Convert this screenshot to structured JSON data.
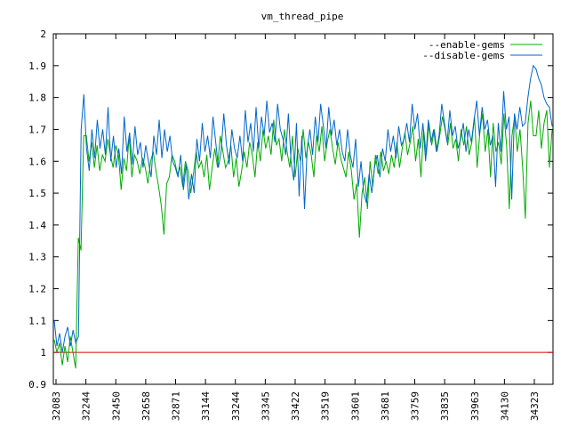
{
  "chart_data": {
    "type": "line",
    "title": "vm_thread_pipe",
    "xlabel": "",
    "ylabel": "",
    "ylim": [
      0.9,
      2.0
    ],
    "yticks": [
      "0.9",
      "1",
      "1.1",
      "1.2",
      "1.3",
      "1.4",
      "1.5",
      "1.6",
      "1.7",
      "1.8",
      "1.9",
      "2"
    ],
    "xtick_labels": [
      "32083",
      "32244",
      "32450",
      "32658",
      "32871",
      "33144",
      "33244",
      "33345",
      "33422",
      "33519",
      "33601",
      "33681",
      "33759",
      "33835",
      "33963",
      "34130",
      "34323"
    ],
    "grid": false,
    "legend_position": "top-right",
    "reference_line": {
      "value": 1.0,
      "color": "#e00000"
    },
    "series": [
      {
        "name": "--enable-gems",
        "color": "#00aa00",
        "values": [
          1.04,
          1.0,
          1.03,
          0.96,
          1.02,
          0.97,
          1.05,
          1.0,
          0.95,
          1.36,
          1.32,
          1.68,
          1.68,
          1.6,
          1.66,
          1.58,
          1.65,
          1.57,
          1.62,
          1.6,
          1.67,
          1.62,
          1.58,
          1.65,
          1.62,
          1.51,
          1.61,
          1.57,
          1.68,
          1.55,
          1.62,
          1.6,
          1.56,
          1.61,
          1.58,
          1.53,
          1.6,
          1.63,
          1.57,
          1.52,
          1.46,
          1.37,
          1.53,
          1.55,
          1.62,
          1.6,
          1.56,
          1.58,
          1.52,
          1.6,
          1.57,
          1.5,
          1.56,
          1.63,
          1.58,
          1.6,
          1.55,
          1.62,
          1.51,
          1.58,
          1.64,
          1.58,
          1.68,
          1.63,
          1.58,
          1.6,
          1.65,
          1.55,
          1.61,
          1.52,
          1.57,
          1.63,
          1.58,
          1.66,
          1.62,
          1.55,
          1.66,
          1.6,
          1.7,
          1.64,
          1.68,
          1.62,
          1.73,
          1.65,
          1.67,
          1.6,
          1.7,
          1.63,
          1.58,
          1.68,
          1.55,
          1.64,
          1.6,
          1.7,
          1.61,
          1.66,
          1.62,
          1.55,
          1.68,
          1.63,
          1.71,
          1.6,
          1.66,
          1.7,
          1.64,
          1.59,
          1.66,
          1.61,
          1.58,
          1.55,
          1.63,
          1.57,
          1.48,
          1.53,
          1.36,
          1.5,
          1.55,
          1.45,
          1.6,
          1.52,
          1.62,
          1.56,
          1.63,
          1.57,
          1.6,
          1.56,
          1.62,
          1.58,
          1.66,
          1.58,
          1.64,
          1.69,
          1.62,
          1.66,
          1.71,
          1.6,
          1.67,
          1.55,
          1.7,
          1.62,
          1.72,
          1.65,
          1.7,
          1.63,
          1.68,
          1.74,
          1.7,
          1.65,
          1.72,
          1.64,
          1.67,
          1.6,
          1.7,
          1.65,
          1.71,
          1.62,
          1.66,
          1.74,
          1.58,
          1.69,
          1.75,
          1.63,
          1.7,
          1.55,
          1.72,
          1.63,
          1.66,
          1.59,
          1.75,
          1.65,
          1.45,
          1.68,
          1.74,
          1.63,
          1.7,
          1.58,
          1.42,
          1.72,
          1.79,
          1.68,
          1.68,
          1.76,
          1.64,
          1.72,
          1.76,
          1.58,
          1.7
        ]
      },
      {
        "name": "--disable-gems",
        "color": "#0066cc",
        "values": [
          1.1,
          1.02,
          1.06,
          1.0,
          1.05,
          1.08,
          1.02,
          1.07,
          1.03,
          1.05,
          1.7,
          1.81,
          1.64,
          1.57,
          1.7,
          1.61,
          1.73,
          1.64,
          1.7,
          1.62,
          1.77,
          1.6,
          1.68,
          1.58,
          1.64,
          1.56,
          1.74,
          1.63,
          1.69,
          1.59,
          1.71,
          1.62,
          1.66,
          1.58,
          1.65,
          1.6,
          1.55,
          1.68,
          1.62,
          1.73,
          1.61,
          1.7,
          1.63,
          1.68,
          1.6,
          1.58,
          1.55,
          1.62,
          1.51,
          1.59,
          1.48,
          1.56,
          1.5,
          1.67,
          1.6,
          1.72,
          1.63,
          1.68,
          1.61,
          1.74,
          1.66,
          1.58,
          1.63,
          1.75,
          1.65,
          1.59,
          1.7,
          1.64,
          1.61,
          1.68,
          1.6,
          1.76,
          1.66,
          1.72,
          1.63,
          1.77,
          1.64,
          1.74,
          1.68,
          1.79,
          1.69,
          1.72,
          1.66,
          1.78,
          1.7,
          1.67,
          1.62,
          1.75,
          1.6,
          1.54,
          1.72,
          1.49,
          1.68,
          1.45,
          1.64,
          1.7,
          1.62,
          1.74,
          1.66,
          1.78,
          1.71,
          1.64,
          1.77,
          1.68,
          1.73,
          1.65,
          1.7,
          1.63,
          1.6,
          1.7,
          1.62,
          1.58,
          1.67,
          1.52,
          1.6,
          1.5,
          1.47,
          1.56,
          1.5,
          1.58,
          1.62,
          1.55,
          1.64,
          1.6,
          1.7,
          1.63,
          1.68,
          1.61,
          1.71,
          1.65,
          1.67,
          1.72,
          1.66,
          1.78,
          1.7,
          1.75,
          1.64,
          1.72,
          1.6,
          1.73,
          1.66,
          1.7,
          1.63,
          1.68,
          1.78,
          1.72,
          1.66,
          1.76,
          1.68,
          1.71,
          1.64,
          1.67,
          1.72,
          1.63,
          1.7,
          1.66,
          1.73,
          1.79,
          1.68,
          1.77,
          1.7,
          1.73,
          1.65,
          1.68,
          1.52,
          1.72,
          1.63,
          1.82,
          1.7,
          1.74,
          1.48,
          1.75,
          1.7,
          1.77,
          1.71,
          1.72,
          1.8,
          1.86,
          1.9,
          1.89,
          1.86,
          1.84,
          1.8,
          1.78,
          1.77,
          1.71
        ]
      }
    ]
  }
}
